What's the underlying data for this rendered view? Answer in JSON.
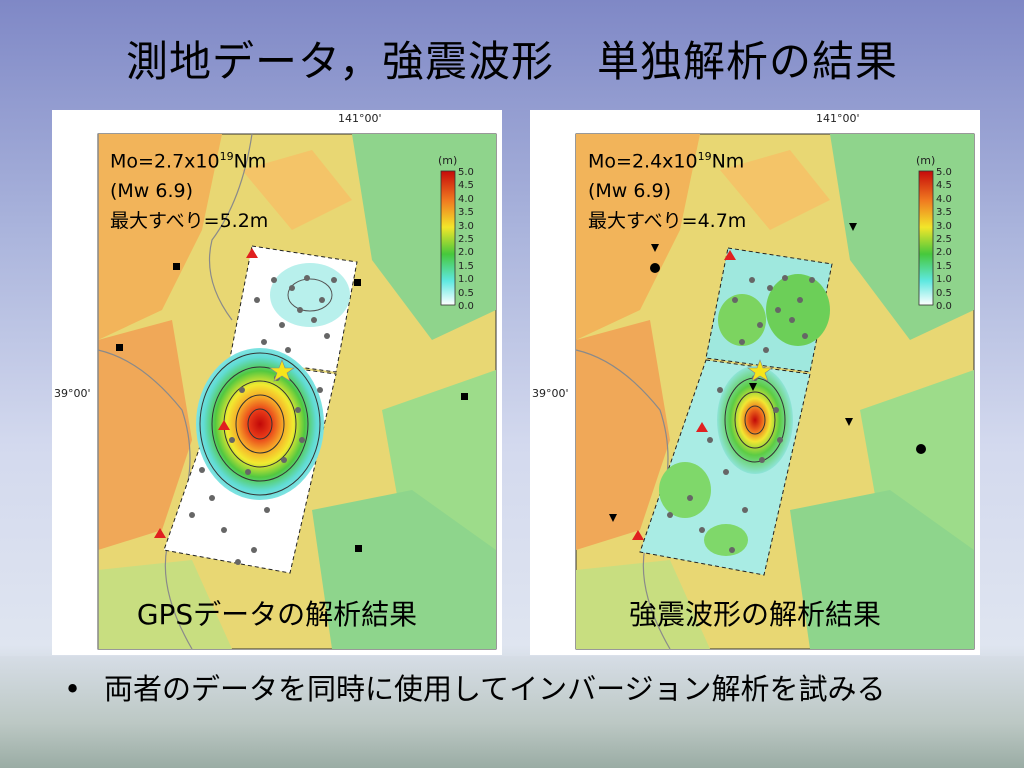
{
  "slide": {
    "title": "測地データ，強震波形　単独解析の結果"
  },
  "panels": [
    {
      "moment_base": "Mo=2.7x10",
      "moment_exp": "19",
      "moment_unit": "Nm",
      "magnitude": "(Mw 6.9)",
      "max_slip": "最大すべり=5.2m",
      "caption": "GPSデータの解析結果",
      "lon_label": "141°00'",
      "lat_label": "39°00'",
      "scale_unit": "(m)",
      "scale_ticks": [
        "5.0",
        "4.5",
        "4.0",
        "3.5",
        "3.0",
        "2.5",
        "2.0",
        "1.5",
        "1.0",
        "0.5",
        "0.0"
      ]
    },
    {
      "moment_base": "Mo=2.4x10",
      "moment_exp": "19",
      "moment_unit": "Nm",
      "magnitude": "(Mw 6.9)",
      "max_slip": "最大すべり=4.7m",
      "caption": "強震波形の解析結果",
      "lon_label": "141°00'",
      "lat_label": "39°00'",
      "scale_unit": "(m)",
      "scale_ticks": [
        "5.0",
        "4.5",
        "4.0",
        "3.5",
        "3.0",
        "2.5",
        "2.0",
        "1.5",
        "1.0",
        "0.5",
        "0.0"
      ]
    }
  ],
  "bullet": {
    "symbol": "•",
    "text": "両者のデータを同時に使用してインバージョン解析を試みる"
  },
  "colors": {
    "terrain_low": "#8ed58c",
    "terrain_mid": "#d9e07a",
    "terrain_high": "#f0b060",
    "slip_peak": "#d81818",
    "epicenter_star": "#f5e51b"
  }
}
